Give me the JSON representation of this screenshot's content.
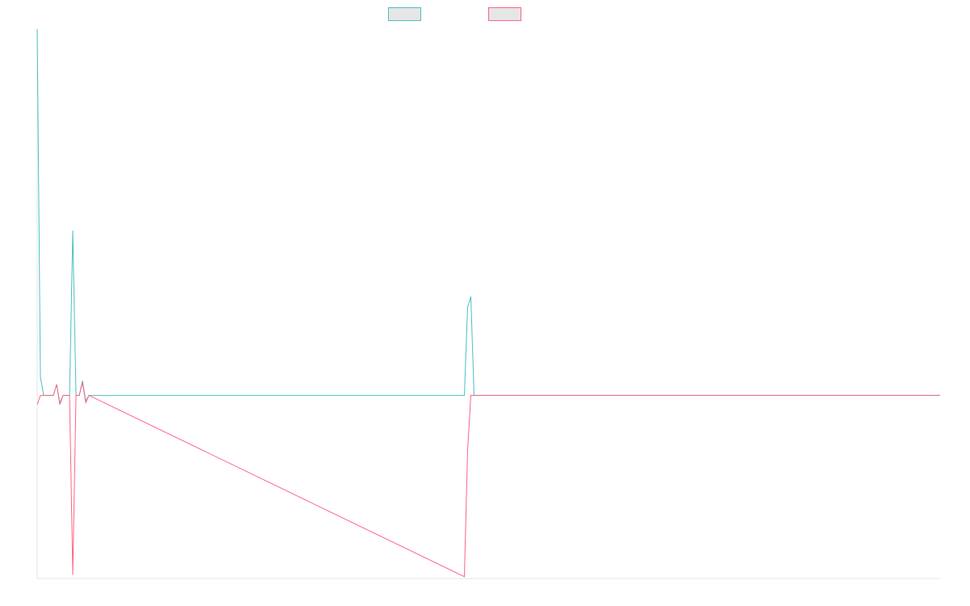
{
  "colors": {
    "teal": "#4bc0c0",
    "pink": "#ff6384",
    "swatch_fill": "#e6e6e6",
    "axis": "#e6e6e6"
  },
  "chart_data": {
    "type": "line",
    "title": "",
    "xlabel": "",
    "ylabel": "",
    "grid": false,
    "legend": "top-center",
    "xlim": [
      0,
      279
    ],
    "ylim": [
      -100,
      200
    ],
    "series": [
      {
        "color": "#4bc0c0",
        "points": [
          [
            0,
            200
          ],
          [
            1,
            10
          ],
          [
            2,
            0
          ],
          [
            3,
            0
          ],
          [
            4,
            0
          ],
          [
            5,
            0
          ],
          [
            6,
            6
          ],
          [
            7,
            -4
          ],
          [
            8,
            0
          ],
          [
            9,
            0
          ],
          [
            10,
            0
          ],
          [
            11,
            90
          ],
          [
            12,
            0
          ],
          [
            13,
            0
          ],
          [
            14,
            8
          ],
          [
            15,
            -3
          ],
          [
            16,
            0
          ],
          [
            132,
            0
          ],
          [
            133,
            48
          ],
          [
            134,
            54
          ],
          [
            135,
            0
          ],
          [
            279,
            0
          ]
        ]
      },
      {
        "color": "#ff6384",
        "points": [
          [
            0,
            -5
          ],
          [
            1,
            0
          ],
          [
            2,
            0
          ],
          [
            3,
            0
          ],
          [
            4,
            0
          ],
          [
            5,
            0
          ],
          [
            6,
            6
          ],
          [
            7,
            -5
          ],
          [
            8,
            0
          ],
          [
            9,
            0
          ],
          [
            10,
            0
          ],
          [
            11,
            -98
          ],
          [
            12,
            0
          ],
          [
            13,
            0
          ],
          [
            14,
            7
          ],
          [
            15,
            -4
          ],
          [
            16,
            0
          ],
          [
            132,
            -99
          ],
          [
            133,
            -30
          ],
          [
            134,
            0
          ],
          [
            279,
            0
          ]
        ]
      }
    ]
  }
}
